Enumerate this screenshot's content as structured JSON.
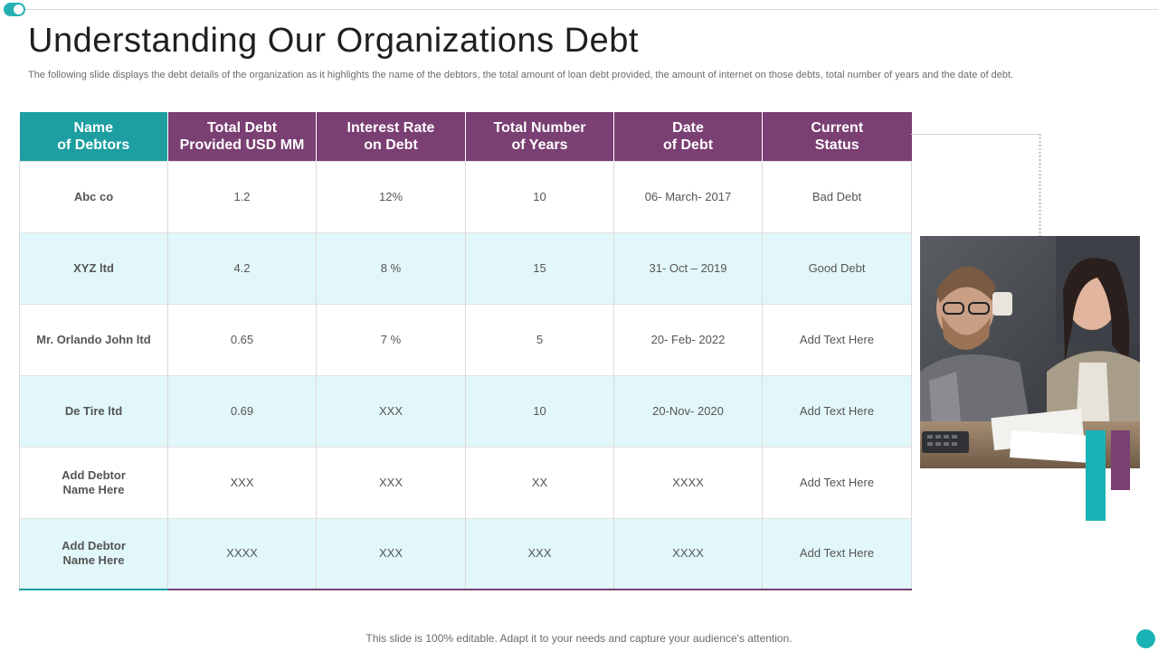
{
  "slide": {
    "title": "Understanding Our Organizations Debt",
    "subtitle": "The following slide displays the debt details of the organization as it highlights the name of the debtors, the total amount of loan debt provided, the amount of internet on those debts, total number of years and the date of debt.",
    "footer": "This slide is 100% editable. Adapt it to your needs and capture your audience's attention."
  },
  "colors": {
    "teal": "#1d9ea0",
    "purple": "#7a3f73",
    "row_alt": "#e2f7f9"
  },
  "table": {
    "headers": [
      {
        "line1": "Name",
        "line2": "of Debtors"
      },
      {
        "line1": "Total Debt",
        "line2": "Provided  USD MM"
      },
      {
        "line1": "Interest  Rate",
        "line2": "on Debt"
      },
      {
        "line1": "Total Number",
        "line2": "of Years"
      },
      {
        "line1": "Date",
        "line2": "of Debt"
      },
      {
        "line1": "Current",
        "line2": "Status"
      }
    ],
    "rows": [
      {
        "name": "Abc co",
        "debt": "1.2",
        "rate": "12%",
        "years": "10",
        "date": "06- March- 2017",
        "status": "Bad Debt"
      },
      {
        "name": "XYZ ltd",
        "debt": "4.2",
        "rate": "8 %",
        "years": "15",
        "date": "31- Oct – 2019",
        "status": "Good Debt"
      },
      {
        "name": "Mr. Orlando John ltd",
        "debt": "0.65",
        "rate": "7 %",
        "years": "5",
        "date": "20- Feb- 2022",
        "status": "Add Text Here"
      },
      {
        "name": "De Tire ltd",
        "debt": "0.69",
        "rate": "XXX",
        "years": "10",
        "date": "20-Nov-  2020",
        "status": "Add Text Here"
      },
      {
        "name_line1": "Add Debtor",
        "name_line2": "Name Here",
        "debt": "XXX",
        "rate": "XXX",
        "years": "XX",
        "date": "XXXX",
        "status": "Add Text Here"
      },
      {
        "name_line1": "Add Debtor",
        "name_line2": "Name Here",
        "debt": "XXXX",
        "rate": "XXX",
        "years": "XXX",
        "date": "XXXX",
        "status": "Add Text Here"
      }
    ]
  }
}
